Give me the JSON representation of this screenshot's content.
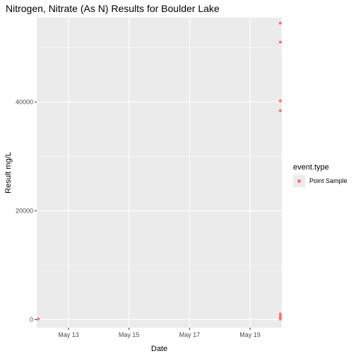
{
  "chart_data": {
    "type": "scatter",
    "title": "Nitrogen, Nitrate (As N) Results for Boulder Lake",
    "xlabel": "Date",
    "ylabel": "Result mg/L",
    "x_ticks": [
      "May 13",
      "May 15",
      "May 17",
      "May 19"
    ],
    "y_ticks": [
      "0",
      "20000",
      "40000"
    ],
    "ylim": [
      -1500,
      55500
    ],
    "xlim_days_from_may13": [
      -1.05,
      7.05
    ],
    "grid": true,
    "legend": {
      "title": "event.type",
      "position": "right",
      "entries": [
        {
          "label": "Point Sample",
          "color": "#F8766D"
        }
      ]
    },
    "series": [
      {
        "name": "Point Sample",
        "color": "#F8766D",
        "points": [
          {
            "date": "2013-05-12",
            "value": 100
          },
          {
            "date": "2013-05-20",
            "value": 54500
          },
          {
            "date": "2013-05-20",
            "value": 51000
          },
          {
            "date": "2013-05-20",
            "value": 40200
          },
          {
            "date": "2013-05-20",
            "value": 38400
          },
          {
            "date": "2013-05-20",
            "value": 1000
          },
          {
            "date": "2013-05-20",
            "value": 600
          },
          {
            "date": "2013-05-20",
            "value": 300
          },
          {
            "date": "2013-05-20",
            "value": 100
          }
        ]
      }
    ]
  }
}
